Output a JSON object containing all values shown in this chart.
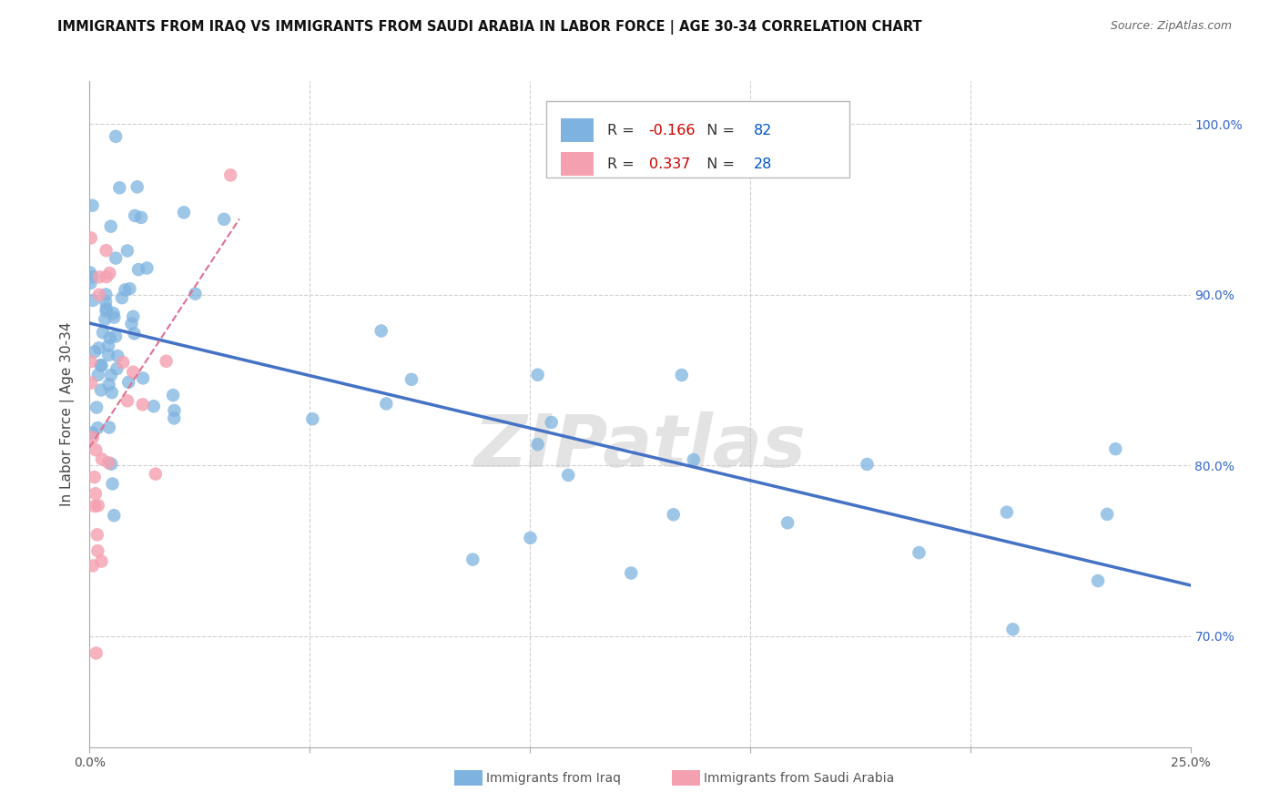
{
  "title": "IMMIGRANTS FROM IRAQ VS IMMIGRANTS FROM SAUDI ARABIA IN LABOR FORCE | AGE 30-34 CORRELATION CHART",
  "source": "Source: ZipAtlas.com",
  "ylabel": "In Labor Force | Age 30-34",
  "xlim": [
    0.0,
    25.0
  ],
  "ylim": [
    63.5,
    102.5
  ],
  "xticks": [
    0.0,
    5.0,
    10.0,
    15.0,
    20.0,
    25.0
  ],
  "ytick_positions": [
    70.0,
    80.0,
    90.0,
    100.0
  ],
  "iraq_R": -0.166,
  "iraq_N": 82,
  "saudi_R": 0.337,
  "saudi_N": 28,
  "iraq_color": "#7eb3e0",
  "saudi_color": "#f4a0b0",
  "iraq_line_color": "#4472c4",
  "saudi_line_color": "#e07090",
  "background_color": "#ffffff",
  "grid_color": "#d0d0d0",
  "watermark": "ZIPatlas",
  "legend_R_color": "#cc0000",
  "legend_N_color": "#0055cc"
}
